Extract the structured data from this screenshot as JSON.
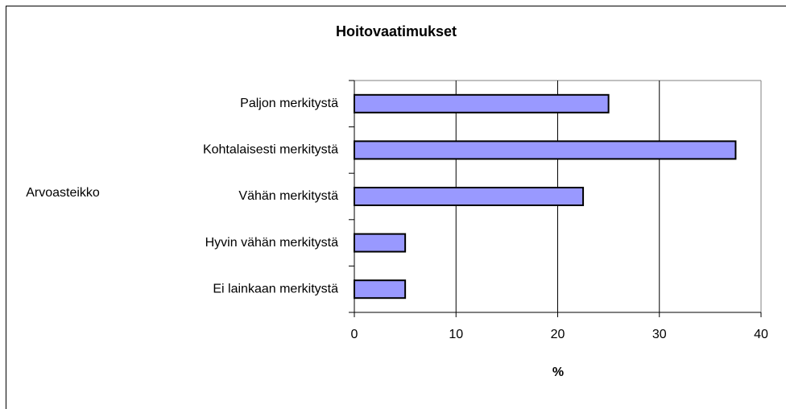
{
  "chart_data": {
    "type": "bar",
    "orientation": "horizontal",
    "title": "Hoitovaatimukset",
    "categories": [
      "Paljon merkitystä",
      "Kohtalaisesti merkitystä",
      "Vähän merkitystä",
      "Hyvin vähän merkitystä",
      "Ei lainkaan merkitystä"
    ],
    "values": [
      25,
      37.5,
      22.5,
      5,
      5
    ],
    "color": "#9999ff",
    "xlim": [
      0,
      40
    ],
    "xticks": [
      0,
      10,
      20,
      30,
      40
    ],
    "grid": true,
    "xlabel": "%",
    "ylabel": "Arvoasteikko"
  }
}
